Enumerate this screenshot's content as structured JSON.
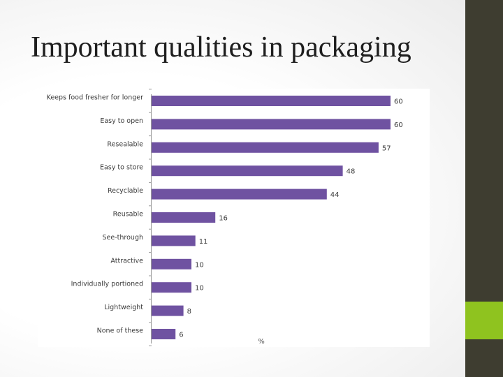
{
  "slide": {
    "title": "Important qualities in packaging",
    "colors": {
      "band": "#3e3d30",
      "accent": "#8fc31f"
    }
  },
  "chart_data": {
    "type": "bar",
    "orientation": "horizontal",
    "categories": [
      "Keeps food fresher for longer",
      "Easy to open",
      "Resealable",
      "Easy to store",
      "Recyclable",
      "Reusable",
      "See-through",
      "Attractive",
      "Individually portioned",
      "Lightweight",
      "None of these"
    ],
    "values": [
      60,
      60,
      57,
      48,
      44,
      16,
      11,
      10,
      10,
      8,
      6
    ],
    "value_labels": [
      "60",
      "60",
      "57",
      "48",
      "44",
      "16",
      "11",
      "10",
      "10",
      "8",
      "6"
    ],
    "unit": "%",
    "xlim": [
      0,
      60
    ],
    "bar_color": "#6f52a1",
    "grid": false,
    "legend": false
  }
}
